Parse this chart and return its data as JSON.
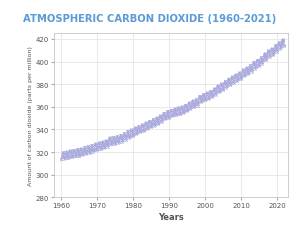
{
  "title": "ATMOSPHERIC CARBON DIOXIDE (1960-2021)",
  "xlabel": "Years",
  "ylabel": "Amount of carbon dioxide (parts per million)",
  "title_color": "#5b9bd5",
  "line_color": "#9999cc",
  "marker_color": "#aaaadd",
  "background_color": "#ffffff",
  "grid_color": "#e0e0e0",
  "xlim": [
    1958,
    2023
  ],
  "ylim": [
    280,
    425
  ],
  "xticks": [
    1960,
    1970,
    1980,
    1990,
    2000,
    2010,
    2020
  ],
  "yticks": [
    280,
    300,
    320,
    340,
    360,
    380,
    400,
    420
  ],
  "co2_data": [
    [
      1960,
      316.9
    ],
    [
      1961,
      317.6
    ],
    [
      1962,
      318.4
    ],
    [
      1963,
      318.99
    ],
    [
      1964,
      319.62
    ],
    [
      1965,
      320.04
    ],
    [
      1966,
      321.38
    ],
    [
      1967,
      322.16
    ],
    [
      1968,
      323.04
    ],
    [
      1969,
      324.62
    ],
    [
      1970,
      325.68
    ],
    [
      1971,
      326.32
    ],
    [
      1972,
      327.45
    ],
    [
      1973,
      329.68
    ],
    [
      1974,
      330.18
    ],
    [
      1975,
      331.08
    ],
    [
      1976,
      332.05
    ],
    [
      1977,
      333.78
    ],
    [
      1978,
      335.41
    ],
    [
      1979,
      336.78
    ],
    [
      1980,
      338.68
    ],
    [
      1981,
      340.1
    ],
    [
      1982,
      341.44
    ],
    [
      1983,
      343.03
    ],
    [
      1984,
      344.58
    ],
    [
      1985,
      346.04
    ],
    [
      1986,
      347.39
    ],
    [
      1987,
      349.16
    ],
    [
      1988,
      351.56
    ],
    [
      1989,
      353.07
    ],
    [
      1990,
      354.35
    ],
    [
      1991,
      355.57
    ],
    [
      1992,
      356.38
    ],
    [
      1993,
      357.07
    ],
    [
      1994,
      358.82
    ],
    [
      1995,
      360.8
    ],
    [
      1996,
      362.59
    ],
    [
      1997,
      363.71
    ],
    [
      1998,
      366.65
    ],
    [
      1999,
      368.33
    ],
    [
      2000,
      369.52
    ],
    [
      2001,
      371.14
    ],
    [
      2002,
      373.22
    ],
    [
      2003,
      375.77
    ],
    [
      2004,
      377.49
    ],
    [
      2005,
      379.8
    ],
    [
      2006,
      381.9
    ],
    [
      2007,
      383.77
    ],
    [
      2008,
      385.59
    ],
    [
      2009,
      387.37
    ],
    [
      2010,
      389.85
    ],
    [
      2011,
      391.63
    ],
    [
      2012,
      393.82
    ],
    [
      2013,
      396.48
    ],
    [
      2014,
      398.55
    ],
    [
      2015,
      400.83
    ],
    [
      2016,
      404.21
    ],
    [
      2017,
      406.53
    ],
    [
      2018,
      408.52
    ],
    [
      2019,
      411.43
    ],
    [
      2020,
      414.24
    ],
    [
      2021,
      416.45
    ]
  ]
}
